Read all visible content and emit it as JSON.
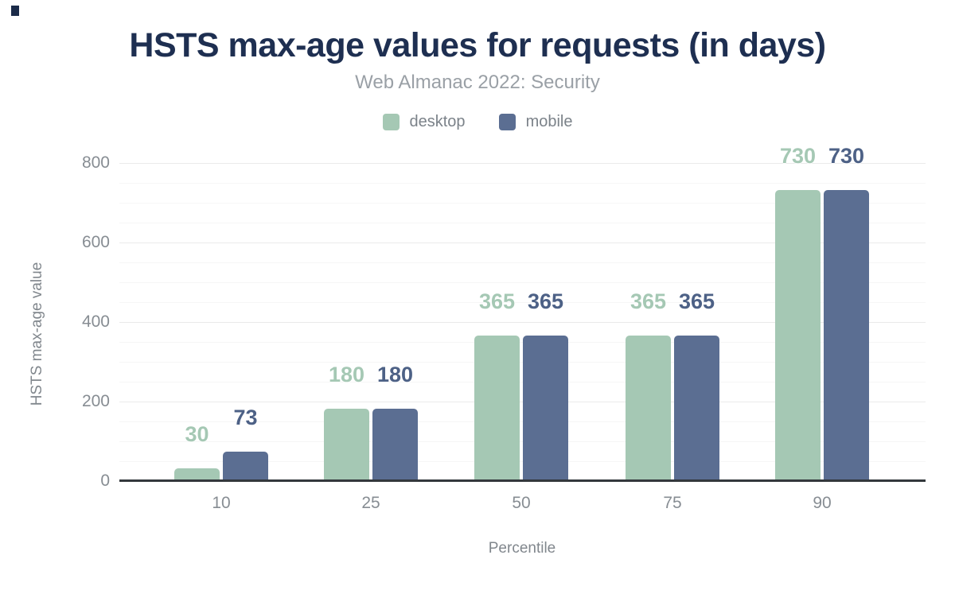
{
  "title": "HSTS max-age values for requests (in days)",
  "subtitle": "Web Almanac 2022: Security",
  "colors": {
    "title": "#1e2f51",
    "subtitle": "#9aa0a6",
    "legend_label": "#7b8289",
    "desktop": "#a5c8b4",
    "mobile": "#5b6e92",
    "desktop_value_label": "#a5c8b4",
    "mobile_value_label": "#4d6186",
    "axis_tick_label": "#878d93",
    "axis_title": "#81878d",
    "axis_line": "#33383c",
    "corner_mark": "#1b2b49"
  },
  "chart_data": {
    "type": "bar",
    "title": "HSTS max-age values for requests (in days)",
    "subtitle": "Web Almanac 2022: Security",
    "categories": [
      "10",
      "25",
      "50",
      "75",
      "90"
    ],
    "series": [
      {
        "name": "desktop",
        "color": "#a5c8b4",
        "label_color": "#a5c8b4",
        "values": [
          30,
          180,
          365,
          365,
          730
        ]
      },
      {
        "name": "mobile",
        "color": "#5b6e92",
        "label_color": "#4d6186",
        "values": [
          73,
          180,
          365,
          365,
          730
        ]
      }
    ],
    "xlabel": "Percentile",
    "ylabel": "HSTS max-age value",
    "ylim": [
      0,
      800
    ],
    "yticks": [
      0,
      200,
      400,
      600,
      800
    ],
    "minor_grid_step": 50,
    "grid": true,
    "legend_position": "top",
    "data_labels": true
  }
}
